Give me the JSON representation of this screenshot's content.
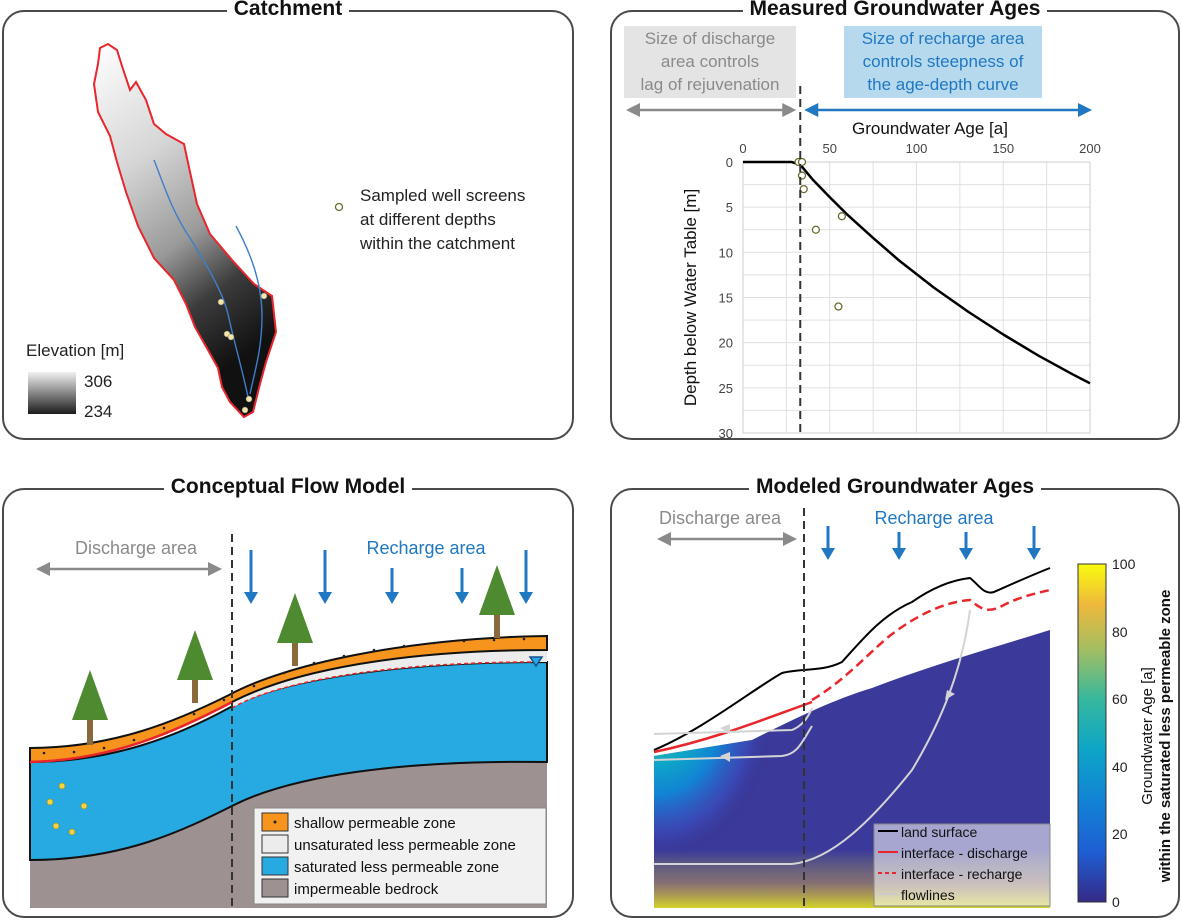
{
  "panels": {
    "catchment": {
      "title": "Catchment",
      "legend_title": "Elevation [m]",
      "legend_max": "306",
      "legend_min": "234",
      "wells_note": [
        "Sampled well screens",
        "at different depths",
        "within the catchment"
      ]
    },
    "measured": {
      "title": "Measured Groundwater Ages",
      "discharge_note": [
        "Size of discharge",
        "area controls",
        "lag of rejuvenation"
      ],
      "recharge_note": [
        "Size of recharge area",
        "controls steepness of",
        "the age-depth curve"
      ],
      "colors": {
        "discharge_box": "#e4e4e4",
        "recharge_box": "#b7d9ee",
        "recharge_text": "#1f78c1",
        "discharge_text": "#8a8a8a"
      }
    },
    "conceptual": {
      "title": "Conceptual Flow Model",
      "discharge_label": "Discharge area",
      "recharge_label": "Recharge area",
      "legend": [
        {
          "label": "shallow permeable zone",
          "color": "#f7941d"
        },
        {
          "label": "unsaturated less permeable zone",
          "color": "#ececec"
        },
        {
          "label": "saturated less permeable zone",
          "color": "#27aae1"
        },
        {
          "label": "impermeable bedrock",
          "color": "#9e9191"
        }
      ]
    },
    "modeled": {
      "title": "Modeled Groundwater Ages",
      "discharge_label": "Discharge area",
      "recharge_label": "Recharge area",
      "legend": [
        {
          "label": "land surface",
          "color": "#000000",
          "style": "solid"
        },
        {
          "label": "interface - discharge",
          "color": "#e8262b",
          "style": "solid"
        },
        {
          "label": "interface - recharge",
          "color": "#e8262b",
          "style": "dashed"
        },
        {
          "label": "flowlines",
          "color": "#cccccc",
          "style": "arrow"
        }
      ],
      "colorbar": {
        "label_line1": "Groundwater Age [a]",
        "label_line2": "within the saturated less permeable zone",
        "ticks": [
          "100",
          "80",
          "60",
          "40",
          "20",
          "0"
        ],
        "colormap": "parula"
      }
    }
  },
  "chart_data": {
    "type": "scatter",
    "title": "",
    "xlabel": "Groundwater Age [a]",
    "ylabel": "Depth below Water Table [m]",
    "xlim": [
      0,
      200
    ],
    "ylim": [
      0,
      30
    ],
    "y_inverted": true,
    "x_axis_position": "top",
    "grid": true,
    "xticks": [
      "0",
      "50",
      "100",
      "150",
      "200"
    ],
    "yticks": [
      "0",
      "5",
      "10",
      "15",
      "20",
      "25",
      "30"
    ],
    "discharge_boundary_age": 33,
    "series": [
      {
        "type": "scatter",
        "x": [
          32,
          34,
          34,
          35,
          42,
          55,
          57
        ],
        "y": [
          0,
          0,
          1.5,
          3,
          7.5,
          16,
          6
        ]
      },
      {
        "type": "line",
        "x": [
          0,
          28,
          33,
          40,
          50,
          60,
          75,
          90,
          110,
          130,
          150,
          170,
          190,
          200
        ],
        "y": [
          0,
          0,
          0.3,
          1.9,
          3.9,
          5.8,
          8.4,
          10.9,
          13.9,
          16.6,
          19.1,
          21.4,
          23.5,
          24.5
        ]
      }
    ]
  }
}
